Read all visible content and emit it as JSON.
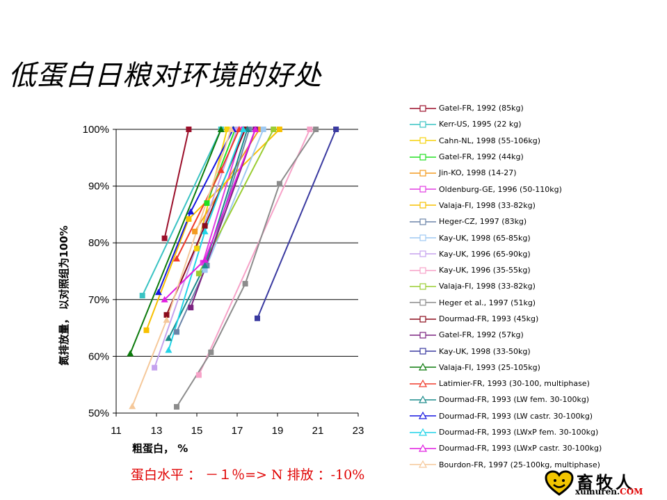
{
  "title": "低蛋白日粮对环境的好处",
  "footnote": "蛋白水平 ： －１％=> N 排放 ：-10%",
  "logo": {
    "name": "畜牧人",
    "domain_main": "xumuren.",
    "domain_tld": "COM",
    "icon": "heart-face-icon"
  },
  "chart_data": {
    "type": "line",
    "title": "",
    "xlabel": "粗蛋白， %",
    "ylabel": "氮排放量， 以对照组为100%",
    "xlim": [
      11,
      23
    ],
    "ylim": [
      50,
      100
    ],
    "xticks": [
      "11",
      "13",
      "15",
      "17",
      "19",
      "21",
      "23"
    ],
    "yticks": [
      "50%",
      "60%",
      "70%",
      "80%",
      "90%",
      "100%"
    ],
    "grid": "horizontal",
    "legend_position": "right",
    "series": [
      {
        "name": "Gatel-FR, 1992 (85kg)",
        "color": "#9b0f2a",
        "marker": "square",
        "points": [
          [
            13.4,
            80.8
          ],
          [
            14.6,
            100
          ]
        ]
      },
      {
        "name": "Kerr-US, 1995 (22 kg)",
        "color": "#39c3c3",
        "marker": "square",
        "points": [
          [
            12.3,
            70.7
          ],
          [
            16.2,
            100
          ]
        ]
      },
      {
        "name": "Cahn-NL, 1998 (55-106kg)",
        "color": "#f5d20a",
        "marker": "square",
        "points": [
          [
            15.0,
            79.0
          ],
          [
            16.5,
            100
          ]
        ]
      },
      {
        "name": "Gatel-FR, 1992 (44kg)",
        "color": "#22e022",
        "marker": "square",
        "points": [
          [
            15.5,
            87.0
          ],
          [
            16.9,
            100
          ]
        ]
      },
      {
        "name": "Jin-KO, 1998 (14-27)",
        "color": "#f39b20",
        "marker": "square",
        "points": [
          [
            14.9,
            82.0
          ],
          [
            18.1,
            100
          ]
        ]
      },
      {
        "name": "Oldenburg-GE, 1996 (50-110kg)",
        "color": "#e23ce2",
        "marker": "square",
        "points": [
          [
            15.3,
            76.5
          ],
          [
            17.3,
            100
          ]
        ]
      },
      {
        "name": "Valaja-FI, 1998 (33-82kg)",
        "color": "#f7c000",
        "marker": "square",
        "points": [
          [
            12.5,
            64.6
          ],
          [
            14.6,
            84.2
          ],
          [
            19.1,
            100
          ]
        ]
      },
      {
        "name": "Heger-CZ, 1997 (83kg)",
        "color": "#6b84a8",
        "marker": "square",
        "points": [
          [
            14.0,
            64.3
          ],
          [
            15.5,
            76.0
          ],
          [
            17.6,
            100
          ]
        ]
      },
      {
        "name": "Kay-UK, 1998 (65-85kg)",
        "color": "#9ec9f2",
        "marker": "square",
        "points": [
          [
            15.4,
            75.2
          ],
          [
            18.3,
            100
          ]
        ]
      },
      {
        "name": "Kay-UK, 1996 (65-90kg)",
        "color": "#c5a2ee",
        "marker": "square",
        "points": [
          [
            12.9,
            58.0
          ],
          [
            17.0,
            100
          ]
        ]
      },
      {
        "name": "Kay-UK, 1996 (35-55kg)",
        "color": "#f7a2c8",
        "marker": "square",
        "points": [
          [
            15.1,
            56.7
          ],
          [
            20.6,
            100
          ]
        ]
      },
      {
        "name": "Valaja-FI, 1998 (33-82kg)",
        "color": "#9acd32",
        "marker": "square",
        "points": [
          [
            15.1,
            74.6
          ],
          [
            18.8,
            100
          ]
        ]
      },
      {
        "name": "Heger et al., 1997 (51kg)",
        "color": "#8c8c8c",
        "marker": "square",
        "points": [
          [
            14.0,
            51.1
          ],
          [
            15.7,
            60.7
          ],
          [
            17.4,
            72.8
          ],
          [
            19.1,
            90.4
          ],
          [
            20.9,
            100
          ]
        ]
      },
      {
        "name": "Dourmad-FR, 1993 (45kg)",
        "color": "#8b0c1c",
        "marker": "square",
        "points": [
          [
            13.5,
            67.3
          ],
          [
            15.4,
            83.0
          ],
          [
            17.4,
            100
          ]
        ]
      },
      {
        "name": "Gatel-FR, 1992 (57kg)",
        "color": "#7b2380",
        "marker": "square",
        "points": [
          [
            14.7,
            68.6
          ],
          [
            17.9,
            100
          ]
        ]
      },
      {
        "name": "Kay-UK, 1998 (33-50kg)",
        "color": "#3a3aa0",
        "marker": "square",
        "points": [
          [
            18.0,
            66.7
          ],
          [
            21.9,
            100
          ]
        ]
      },
      {
        "name": "Valaja-FI, 1993 (25-105kg)",
        "color": "#0b7a0b",
        "marker": "triangle",
        "points": [
          [
            11.7,
            60.5
          ],
          [
            16.2,
            100
          ]
        ]
      },
      {
        "name": "Latimier-FR, 1993 (30-100, multiphase)",
        "color": "#f03a2a",
        "marker": "triangle",
        "points": [
          [
            14.0,
            77.2
          ],
          [
            16.2,
            92.8
          ],
          [
            17.1,
            100
          ]
        ]
      },
      {
        "name": "Dourmad-FR, 1993 (LW fem. 30-100kg)",
        "color": "#1a8a8a",
        "marker": "triangle",
        "points": [
          [
            13.6,
            63.2
          ],
          [
            15.4,
            76.0
          ],
          [
            17.5,
            100
          ]
        ]
      },
      {
        "name": "Dourmad-FR, 1993 (LW castr. 30-100kg)",
        "color": "#1515e0",
        "marker": "triangle",
        "points": [
          [
            13.1,
            71.3
          ],
          [
            14.7,
            85.5
          ],
          [
            16.8,
            100
          ]
        ]
      },
      {
        "name": "Dourmad-FR, 1993 (LWxP fem. 30-100kg)",
        "color": "#22d4e8",
        "marker": "triangle",
        "points": [
          [
            13.6,
            61.1
          ],
          [
            15.4,
            82.0
          ],
          [
            17.3,
            100
          ]
        ]
      },
      {
        "name": "Dourmad-FR, 1993 (LWxP castr. 30-100kg)",
        "color": "#e11ce1",
        "marker": "triangle",
        "points": [
          [
            13.4,
            70.0
          ],
          [
            15.4,
            77.0
          ],
          [
            17.9,
            100
          ]
        ]
      },
      {
        "name": "Bourdon-FR, 1997 (25-100kg, multiphase)",
        "color": "#f5c89a",
        "marker": "triangle",
        "points": [
          [
            11.8,
            51.2
          ],
          [
            13.5,
            66.4
          ],
          [
            16.7,
            100
          ]
        ]
      }
    ]
  }
}
